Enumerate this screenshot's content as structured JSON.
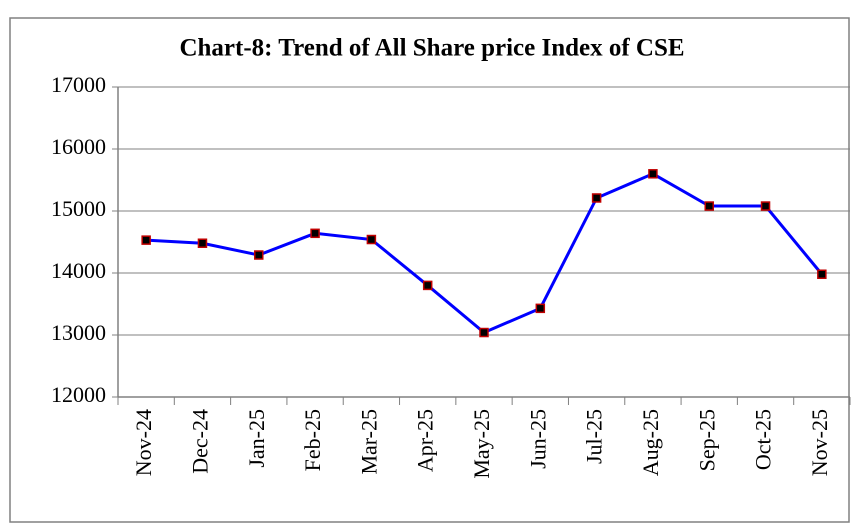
{
  "chart_data": {
    "type": "line",
    "title": "Chart-8: Trend of All Share price Index of CSE",
    "categories": [
      "Nov-24",
      "Dec-24",
      "Jan-25",
      "Feb-25",
      "Mar-25",
      "Apr-25",
      "May-25",
      "Jun-25",
      "Jul-25",
      "Aug-25",
      "Sep-25",
      "Oct-25",
      "Nov-25"
    ],
    "series": [
      {
        "name": "All Share price Index",
        "color": "#0000ff",
        "values": [
          14530,
          14480,
          14290,
          14640,
          14540,
          13800,
          13040,
          13430,
          15210,
          15600,
          15080,
          15080,
          13980
        ]
      }
    ],
    "ylim": [
      12000,
      17000
    ],
    "yticks": [
      12000,
      13000,
      14000,
      15000,
      16000,
      17000
    ],
    "grid": true
  }
}
